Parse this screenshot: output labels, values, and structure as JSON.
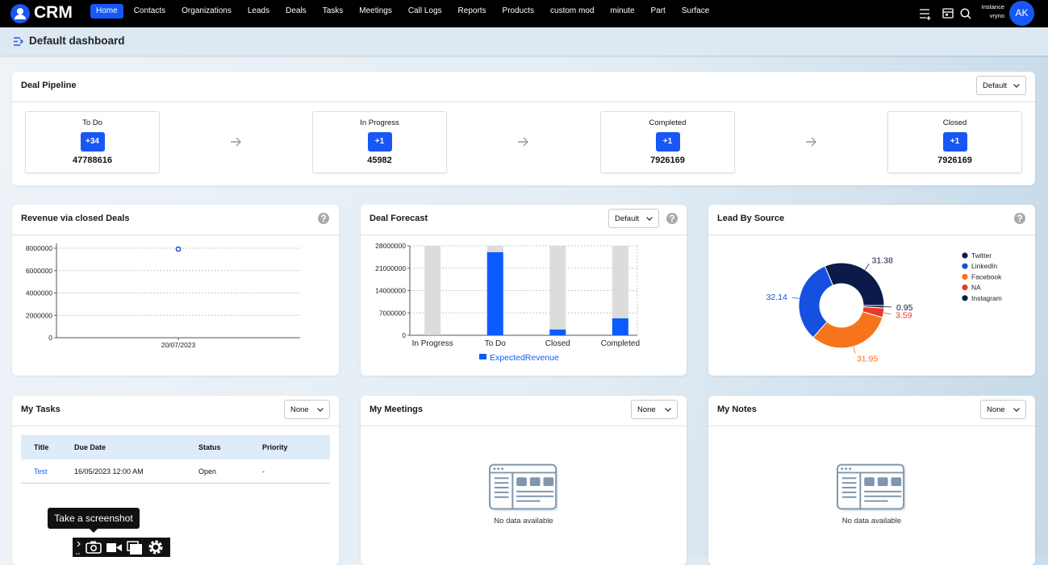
{
  "nav": {
    "brand": "CRM",
    "items": [
      {
        "label": "Home",
        "active": true
      },
      {
        "label": "Contacts",
        "active": false
      },
      {
        "label": "Organizations",
        "active": false
      },
      {
        "label": "Leads",
        "active": false
      },
      {
        "label": "Deals",
        "active": false
      },
      {
        "label": "Tasks",
        "active": false
      },
      {
        "label": "Meetings",
        "active": false
      },
      {
        "label": "Call Logs",
        "active": false
      },
      {
        "label": "Reports",
        "active": false
      },
      {
        "label": "Products",
        "active": false
      },
      {
        "label": "custom mod",
        "active": false
      },
      {
        "label": "minute",
        "active": false
      },
      {
        "label": "Part",
        "active": false
      },
      {
        "label": "Surface",
        "active": false
      }
    ],
    "user": {
      "instance": "Instance",
      "name": "vryno",
      "initials": "AK"
    }
  },
  "header": {
    "title": "Default dashboard"
  },
  "pipeline": {
    "title": "Deal Pipeline",
    "filter": "Default",
    "stages": [
      {
        "name": "To Do",
        "badge": "+34",
        "amount": "47788616"
      },
      {
        "name": "In Progress",
        "badge": "+1",
        "amount": "45982"
      },
      {
        "name": "Completed",
        "badge": "+1",
        "amount": "7926169"
      },
      {
        "name": "Closed",
        "badge": "+1",
        "amount": "7926169"
      }
    ]
  },
  "chart_data": [
    {
      "type": "line",
      "title": "Revenue via closed Deals",
      "categories": [
        "20/07/2023"
      ],
      "values": [
        7926169
      ],
      "color": "#1f4fd1",
      "ylim": [
        0,
        8000000
      ],
      "yticks": [
        0,
        2000000,
        4000000,
        6000000,
        8000000
      ],
      "grid": true
    },
    {
      "type": "bar",
      "title": "Deal Forecast",
      "categories": [
        "In Progress",
        "To Do",
        "Closed",
        "Completed"
      ],
      "series": [
        {
          "name": "ExpectedRevenue",
          "color": "#0b5cff",
          "values": [
            45982,
            26000000,
            1800000,
            5300000
          ]
        }
      ],
      "bar_background": "#dcdcdc",
      "ylim": [
        0,
        28000000
      ],
      "yticks": [
        0,
        7000000,
        14000000,
        21000000,
        28000000
      ],
      "grid": true,
      "legend": "bottom"
    },
    {
      "type": "pie",
      "title": "Lead By Source",
      "categories": [
        "Twitter",
        "LinkedIn",
        "Facebook",
        "NA",
        "Instagram"
      ],
      "values": [
        31.38,
        32.14,
        31.95,
        3.59,
        0.95
      ],
      "colors": [
        "#0c1a4b",
        "#1650e0",
        "#f6751c",
        "#e63a2a",
        "#0c1a4b"
      ],
      "donut": true,
      "legend": "right"
    }
  ],
  "panels": {
    "forecast_filter": "Default",
    "tasks": {
      "title": "My Tasks",
      "filter": "None",
      "columns": [
        "Title",
        "Due Date",
        "Status",
        "Priority"
      ],
      "rows": [
        [
          "Test",
          "16/05/2023 12:00 AM",
          "Open",
          "-"
        ]
      ]
    },
    "meetings": {
      "title": "My Meetings",
      "filter": "None",
      "empty": "No data available"
    },
    "notes": {
      "title": "My Notes",
      "filter": "None",
      "empty": "No data available"
    }
  },
  "overlay": {
    "tooltip": "Take a screenshot"
  }
}
